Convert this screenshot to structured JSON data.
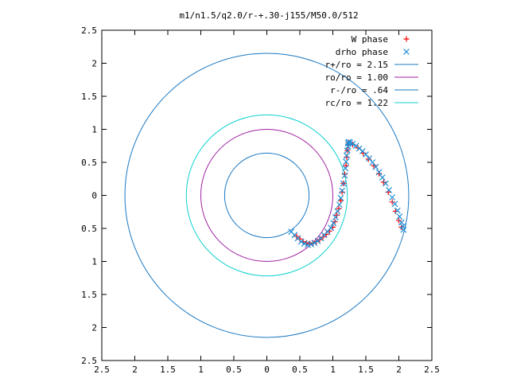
{
  "chart_data": {
    "type": "scatter",
    "title": "m1/n1.5/q2.0/r-+.30-j155/M50.0/512",
    "xlim": [
      -2.5,
      2.5
    ],
    "ylim": [
      -2.5,
      2.5
    ],
    "x_ticks": [
      {
        "value": -2.5,
        "label": "2.5"
      },
      {
        "value": -2,
        "label": "2"
      },
      {
        "value": -1.5,
        "label": "1.5"
      },
      {
        "value": -1,
        "label": "1"
      },
      {
        "value": -0.5,
        "label": "0.5"
      },
      {
        "value": 0,
        "label": "0"
      },
      {
        "value": 0.5,
        "label": "0.5"
      },
      {
        "value": 1,
        "label": "1"
      },
      {
        "value": 1.5,
        "label": "1.5"
      },
      {
        "value": 2,
        "label": "2"
      },
      {
        "value": 2.5,
        "label": "2.5"
      }
    ],
    "y_ticks": [
      {
        "value": 2.5,
        "label": "2.5"
      },
      {
        "value": 2,
        "label": "2"
      },
      {
        "value": 1.5,
        "label": "1.5"
      },
      {
        "value": 1,
        "label": "1"
      },
      {
        "value": 0.5,
        "label": "0.5"
      },
      {
        "value": 0,
        "label": "0"
      },
      {
        "value": -0.5,
        "label": "0.5"
      },
      {
        "value": -1,
        "label": "1"
      },
      {
        "value": -1.5,
        "label": "1.5"
      },
      {
        "value": -2,
        "label": "2"
      },
      {
        "value": -2.5,
        "label": "2.5"
      }
    ],
    "grid": false,
    "legend_position": "top-right",
    "series": [
      {
        "name": "W phase",
        "type": "scatter",
        "marker": "plus",
        "color": "#ff0000",
        "x": [
          0.45,
          0.5,
          0.55,
          0.6,
          0.65,
          0.7,
          0.75,
          0.8,
          0.85,
          0.9,
          0.95,
          1.0,
          1.03,
          1.06,
          1.09,
          1.12,
          1.14,
          1.16,
          1.18,
          1.2,
          1.21,
          1.22,
          1.23,
          1.24,
          1.3,
          1.38,
          1.46,
          1.54,
          1.62,
          1.7,
          1.77,
          1.84,
          1.9,
          1.95,
          2.0,
          2.04
        ],
        "y": [
          -0.62,
          -0.66,
          -0.7,
          -0.72,
          -0.73,
          -0.72,
          -0.7,
          -0.67,
          -0.63,
          -0.59,
          -0.54,
          -0.48,
          -0.4,
          -0.3,
          -0.2,
          -0.08,
          0.05,
          0.18,
          0.32,
          0.45,
          0.58,
          0.68,
          0.76,
          0.8,
          0.77,
          0.72,
          0.64,
          0.55,
          0.45,
          0.33,
          0.2,
          0.05,
          -0.1,
          -0.24,
          -0.38,
          -0.48
        ]
      },
      {
        "name": "drho phase",
        "type": "scatter",
        "marker": "cross",
        "color": "#1f8fd6",
        "x": [
          0.37,
          0.42,
          0.47,
          0.52,
          0.57,
          0.62,
          0.67,
          0.72,
          0.77,
          0.82,
          0.87,
          0.92,
          0.97,
          1.01,
          1.04,
          1.07,
          1.1,
          1.12,
          1.14,
          1.16,
          1.18,
          1.19,
          1.2,
          1.21,
          1.22,
          1.23,
          1.23,
          1.24,
          1.26,
          1.3,
          1.35,
          1.4,
          1.45,
          1.5,
          1.55,
          1.6,
          1.65,
          1.7,
          1.75,
          1.8,
          1.85,
          1.9,
          1.94,
          1.98,
          2.01,
          2.04,
          2.06,
          2.07
        ],
        "y": [
          -0.55,
          -0.6,
          -0.65,
          -0.7,
          -0.73,
          -0.75,
          -0.74,
          -0.72,
          -0.69,
          -0.65,
          -0.6,
          -0.55,
          -0.49,
          -0.42,
          -0.33,
          -0.24,
          -0.14,
          -0.04,
          0.07,
          0.18,
          0.3,
          0.41,
          0.51,
          0.6,
          0.68,
          0.74,
          0.79,
          0.81,
          0.8,
          0.78,
          0.75,
          0.71,
          0.67,
          0.62,
          0.56,
          0.5,
          0.43,
          0.35,
          0.27,
          0.18,
          0.08,
          -0.03,
          -0.13,
          -0.23,
          -0.32,
          -0.41,
          -0.47,
          -0.52
        ]
      },
      {
        "name": "r+/ro = 2.15",
        "type": "circle",
        "radius": 2.15,
        "color": "#1a78c2"
      },
      {
        "name": "ro/ro = 1.00",
        "type": "circle",
        "radius": 1.0,
        "color": "#a020a0"
      },
      {
        "name": "r-/ro = .64",
        "type": "circle",
        "radius": 0.64,
        "color": "#1a78c2"
      },
      {
        "name": "rc/ro = 1.22",
        "type": "circle",
        "radius": 1.22,
        "color": "#10d0d0"
      }
    ]
  }
}
